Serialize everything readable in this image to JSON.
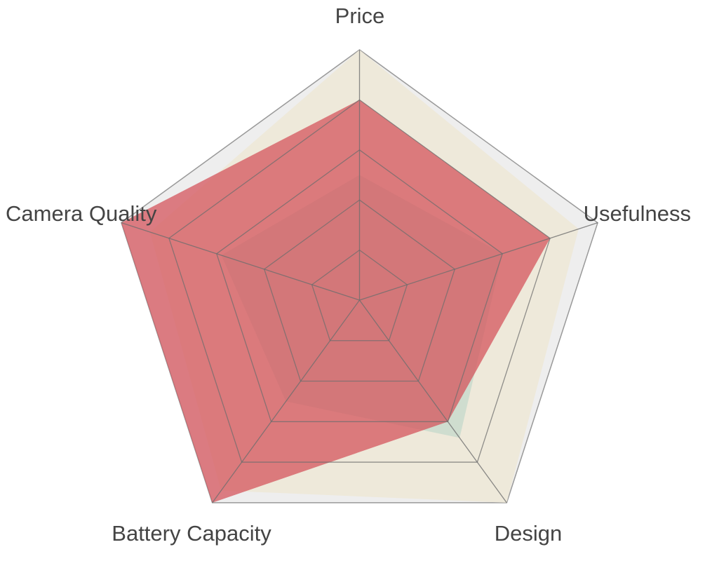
{
  "chart_data": {
    "type": "radar",
    "axes": [
      "Price",
      "Usefulness",
      "Design",
      "Battery Capacity",
      "Camera Quality"
    ],
    "max_value": 5,
    "ring_count": 5,
    "grid": true,
    "legend": "none",
    "series": [
      {
        "values": [
          5,
          4.6,
          5,
          4.7,
          4.4
        ],
        "color": "#ede7d6",
        "opacity": 0.85
      },
      {
        "values": [
          2.5,
          3,
          3.4,
          2.5,
          2.9
        ],
        "color": "#a8cfc2",
        "opacity": 0.45
      },
      {
        "values": [
          4,
          4,
          3,
          5,
          5
        ],
        "color": "#d44f57",
        "opacity": 0.72
      }
    ],
    "colors": {
      "outer_fill": "#eeeeee",
      "outer_stroke": "#999999",
      "grid_stroke": "#6e6e6e",
      "label": "#444444"
    }
  }
}
